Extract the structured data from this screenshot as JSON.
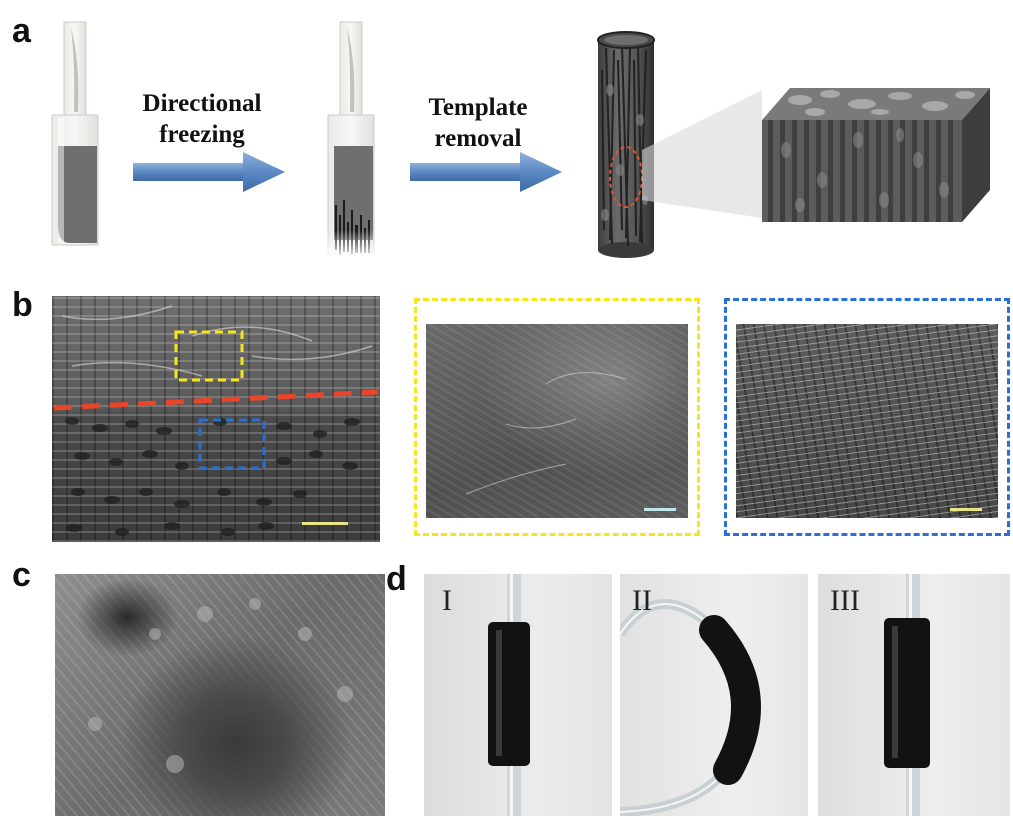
{
  "figure": {
    "panels": {
      "a": {
        "letter": "a",
        "step1": {
          "line1": "Directional",
          "line2": "freezing"
        },
        "step2": {
          "line1": "Template",
          "line2": "removal"
        }
      },
      "b": {
        "letter": "b",
        "inset_colors": {
          "yellow": "#f4e61c",
          "blue": "#2a6fd4",
          "interface": "#e8452a"
        }
      },
      "c": {
        "letter": "c"
      },
      "d": {
        "letter": "d",
        "labels": [
          "I",
          "II",
          "III"
        ]
      }
    },
    "colors": {
      "arrow": "#5b89c4",
      "scalebar_yellow": "#e8e48a",
      "scalebar_cyan": "#bfe8ec"
    }
  }
}
